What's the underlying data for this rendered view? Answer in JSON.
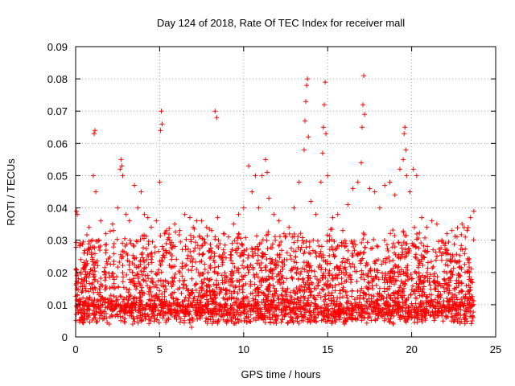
{
  "chart_data": {
    "type": "scatter",
    "title": "Day 124 of 2018, Rate Of TEC Index for receiver mall",
    "xlabel": "GPS time / hours",
    "ylabel": "ROTI / TECUs",
    "xlim": [
      0,
      25
    ],
    "ylim": [
      0,
      0.09
    ],
    "x_ticks": [
      0,
      5,
      10,
      15,
      20,
      25
    ],
    "x_tick_labels": [
      "0",
      "5",
      "10",
      "15",
      "20",
      "25"
    ],
    "y_ticks": [
      0,
      0.01,
      0.02,
      0.03,
      0.04,
      0.05,
      0.06,
      0.07,
      0.08,
      0.09
    ],
    "y_tick_labels": [
      "0",
      "0.01",
      "0.02",
      "0.03",
      "0.04",
      "0.05",
      "0.06",
      "0.07",
      "0.08",
      "0.09"
    ],
    "grid": true,
    "marker": "+",
    "marker_color": "#ff0000",
    "series": [
      {
        "x": [
          0.05,
          0.1,
          0.3,
          0.5,
          0.8,
          1.0,
          1.05,
          1.1,
          1.15,
          1.2,
          1.5,
          1.8,
          2.2,
          2.5,
          2.65,
          2.7,
          2.75,
          2.8,
          3.0,
          3.2,
          3.5,
          3.7,
          3.9,
          4.1,
          4.3,
          4.5,
          4.8,
          5.0,
          5.05,
          5.1,
          5.15,
          5.3,
          5.6,
          5.9,
          6.2,
          6.5,
          6.8,
          7.0,
          7.2,
          7.5,
          7.8,
          8.1,
          8.3,
          8.4,
          8.45,
          8.5,
          8.8,
          9.1,
          9.4,
          9.7,
          10.0,
          10.3,
          10.5,
          10.7,
          10.9,
          11.1,
          11.3,
          11.4,
          11.5,
          11.8,
          12.1,
          12.4,
          12.7,
          13.0,
          13.3,
          13.6,
          13.65,
          13.7,
          13.75,
          13.8,
          13.85,
          14.0,
          14.3,
          14.6,
          14.7,
          14.75,
          14.8,
          14.85,
          14.9,
          15.0,
          15.3,
          15.6,
          15.9,
          16.2,
          16.5,
          16.8,
          17.0,
          17.05,
          17.1,
          17.15,
          17.2,
          17.5,
          17.8,
          18.1,
          18.4,
          18.7,
          19.0,
          19.3,
          19.5,
          19.55,
          19.6,
          19.65,
          19.7,
          19.9,
          20.1,
          20.3,
          20.6,
          20.9,
          21.2,
          21.5,
          21.8,
          22.1,
          22.4,
          22.7,
          23.0,
          23.3,
          23.5,
          23.7,
          2.0,
          6.9,
          14.2,
          18.9,
          23.6,
          0.4,
          12.9,
          3.4,
          9.0,
          16.0
        ],
        "y": [
          0.039,
          0.038,
          0.024,
          0.026,
          0.034,
          0.03,
          0.05,
          0.063,
          0.064,
          0.045,
          0.036,
          0.032,
          0.035,
          0.04,
          0.052,
          0.055,
          0.053,
          0.05,
          0.038,
          0.036,
          0.047,
          0.04,
          0.045,
          0.038,
          0.037,
          0.034,
          0.036,
          0.048,
          0.064,
          0.07,
          0.066,
          0.032,
          0.03,
          0.035,
          0.033,
          0.038,
          0.037,
          0.034,
          0.036,
          0.036,
          0.034,
          0.033,
          0.07,
          0.068,
          0.037,
          0.03,
          0.032,
          0.031,
          0.035,
          0.038,
          0.04,
          0.053,
          0.045,
          0.05,
          0.04,
          0.05,
          0.055,
          0.051,
          0.043,
          0.038,
          0.036,
          0.032,
          0.034,
          0.04,
          0.048,
          0.058,
          0.067,
          0.073,
          0.078,
          0.08,
          0.062,
          0.042,
          0.038,
          0.048,
          0.057,
          0.065,
          0.072,
          0.079,
          0.063,
          0.05,
          0.037,
          0.038,
          0.033,
          0.041,
          0.046,
          0.048,
          0.054,
          0.065,
          0.072,
          0.081,
          0.069,
          0.046,
          0.045,
          0.04,
          0.047,
          0.048,
          0.044,
          0.052,
          0.055,
          0.063,
          0.065,
          0.058,
          0.05,
          0.045,
          0.052,
          0.05,
          0.037,
          0.034,
          0.036,
          0.035,
          0.03,
          0.032,
          0.033,
          0.031,
          0.035,
          0.033,
          0.037,
          0.039,
          0.004,
          0.003,
          0.005,
          0.004,
          0.005,
          0.006,
          0.005,
          0.004,
          0.005,
          0.004
        ],
        "dense_band": {
          "y_min": 0.004,
          "y_typical_max": 0.025,
          "x_range": [
            0,
            23.7
          ]
        }
      }
    ]
  }
}
